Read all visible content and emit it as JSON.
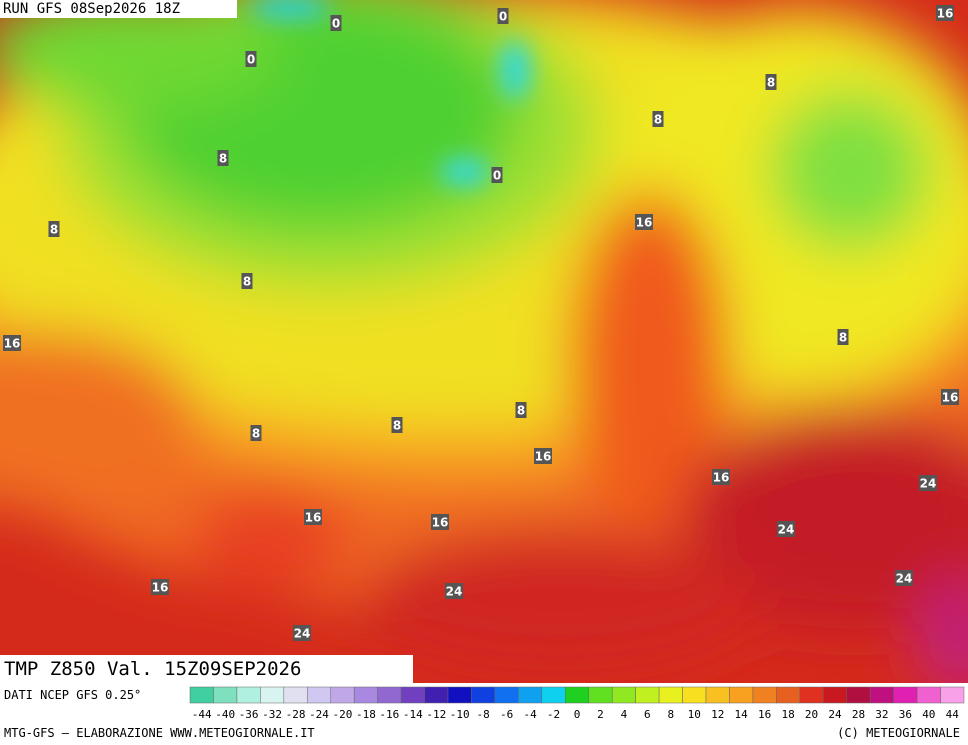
{
  "header": {
    "run": "RUN GFS 08Sep2026 18Z"
  },
  "map": {
    "contour_labels": [
      0,
      0,
      0,
      16,
      8,
      8,
      8,
      0,
      8,
      16,
      8,
      16,
      8,
      16,
      8,
      8,
      8,
      16,
      16,
      24,
      16,
      16,
      24,
      16,
      24,
      24,
      24
    ]
  },
  "title": "TMP Z850 Val. 15Z09SEP2026",
  "footer": {
    "source": "DATI NCEP GFS 0.25°",
    "credit": "MTG-GFS — ELABORAZIONE WWW.METEOGIORNALE.IT",
    "copyright": "(C) METEOGIORNALE"
  },
  "scale": {
    "labels": [
      -44,
      -40,
      -36,
      -32,
      -28,
      -24,
      -20,
      -18,
      -16,
      -14,
      -12,
      -10,
      -8,
      -6,
      -4,
      -2,
      0,
      2,
      4,
      6,
      8,
      10,
      12,
      14,
      16,
      18,
      20,
      24,
      28,
      32,
      36,
      40,
      44
    ],
    "colors": [
      "#3fcfa0",
      "#7fe0c0",
      "#b0f0e0",
      "#d8f4f0",
      "#e0e0f0",
      "#d0c8f0",
      "#c0a8e8",
      "#a888e0",
      "#9068d0",
      "#7040c0",
      "#4020b0",
      "#1010c0",
      "#1040e0",
      "#1070f0",
      "#10a0f0",
      "#10d0f0",
      "#20d020",
      "#60e020",
      "#90e820",
      "#c0f020",
      "#e8f020",
      "#f8e020",
      "#f8c020",
      "#f8a020",
      "#f08020",
      "#e86020",
      "#e03020",
      "#c81820",
      "#b01040",
      "#c01080",
      "#e020b0",
      "#f060d0",
      "#f8a0e8"
    ]
  }
}
